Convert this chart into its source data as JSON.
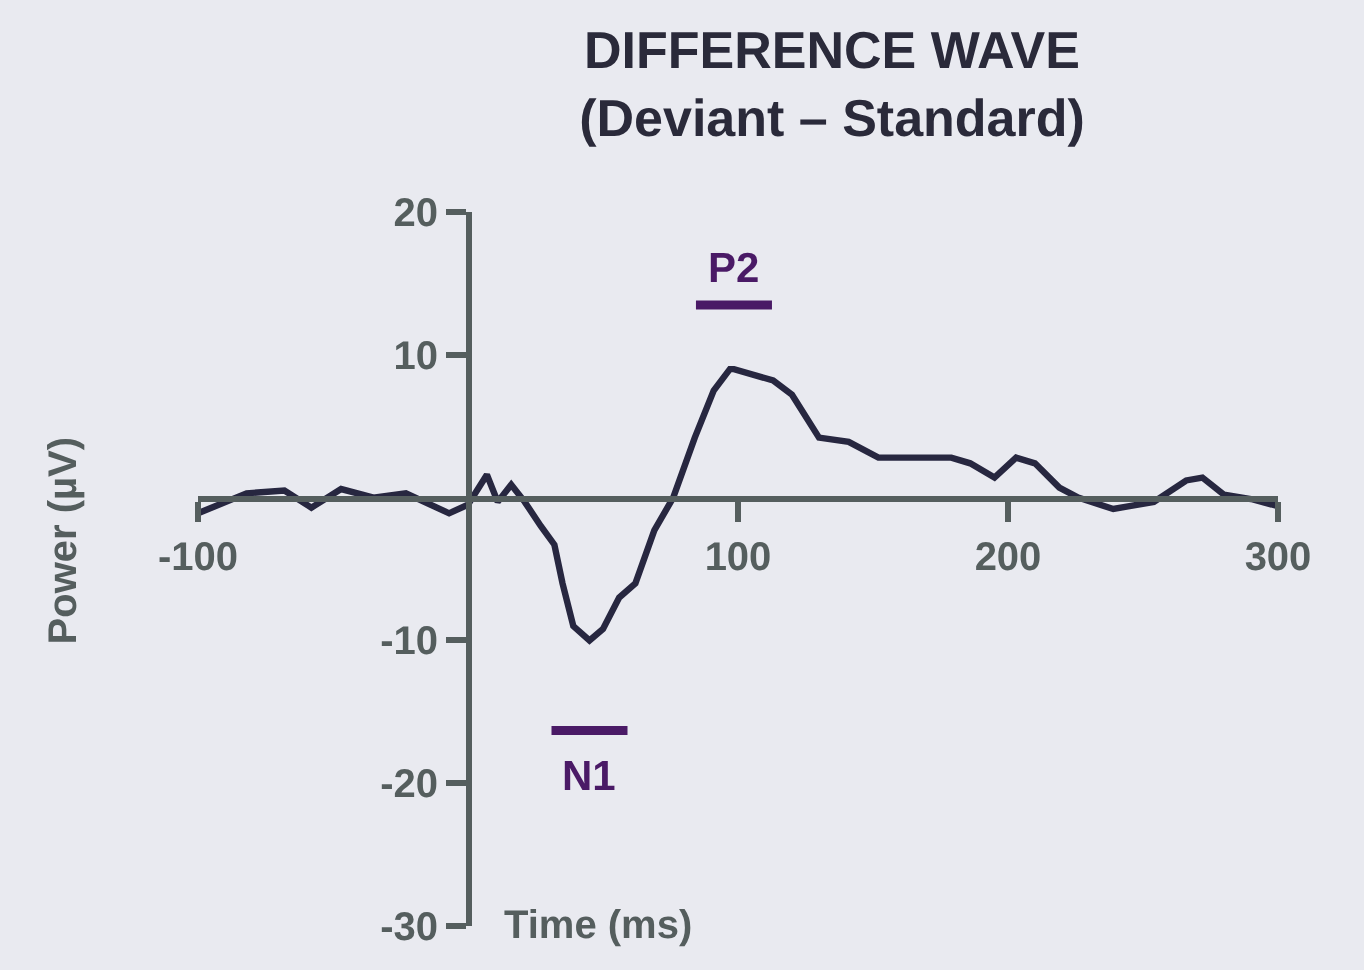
{
  "chart_data": {
    "type": "line",
    "title": "DIFFERENCE WAVE\n(Deviant – Standard)",
    "xlabel": "Time (ms)",
    "ylabel": "Power (µV)",
    "x": [
      -100,
      -82,
      -68,
      -58,
      -47,
      -35,
      -23,
      -7,
      0,
      7,
      11,
      16,
      21,
      27,
      32,
      35,
      39,
      45,
      50,
      56,
      62,
      69,
      76,
      84,
      91,
      97,
      98.5,
      113,
      120,
      130,
      141,
      152,
      164,
      179,
      186,
      195,
      203,
      210,
      219,
      226,
      239,
      245,
      254,
      266,
      272,
      280,
      290,
      300
    ],
    "series": [
      {
        "color": "#272740",
        "values": [
          -1.1,
          0.3,
          0.5,
          -0.7,
          0.6,
          0,
          0.3,
          -1.1,
          -0.5,
          1.6,
          -0.3,
          0.9,
          -0.3,
          -2.0,
          -3.3,
          -6,
          -9,
          -10.0,
          -9.2,
          -7,
          -6,
          -2.3,
          0,
          4.2,
          7.5,
          9.0,
          9.0,
          8.2,
          7.2,
          4.2,
          3.9,
          2.8,
          2.8,
          2.8,
          2.4,
          1.4,
          2.8,
          2.4,
          0.7,
          0,
          -0.8,
          -0.6,
          -0.3,
          1.2,
          1.4,
          0.2,
          -0.1,
          -0.6
        ]
      }
    ],
    "xlim": [
      -100,
      300
    ],
    "xticks": [
      -100,
      100,
      200,
      300
    ],
    "ylim": [
      -30,
      20
    ],
    "yticks": [
      20,
      10,
      -10,
      -20,
      -30
    ],
    "annotations": [
      {
        "text": "P2",
        "x": 98.5,
        "y": 9.0
      },
      {
        "text": "N1",
        "x": 45,
        "y": -10.0
      }
    ],
    "grid": false,
    "marker": "none",
    "line_style": "solid"
  }
}
